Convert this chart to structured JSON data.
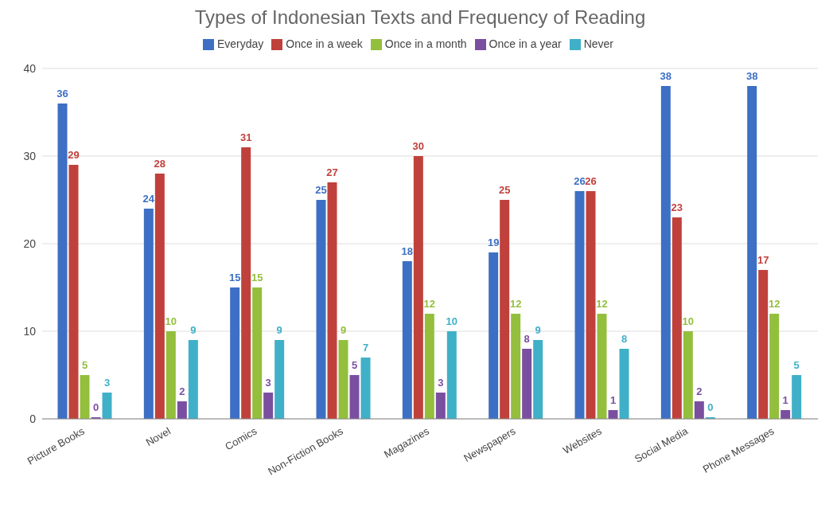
{
  "chart_data": {
    "type": "bar",
    "title": "Types of Indonesian Texts and Frequency of Reading",
    "categories": [
      "Picture Books",
      "Novel",
      "Comics",
      "Non-Fiction Books",
      "Magazines",
      "Newspapers",
      "Websites",
      "Social Media",
      "Phone Messages"
    ],
    "series": [
      {
        "name": "Everyday",
        "color": "#3d6fc4",
        "values": [
          36,
          24,
          15,
          25,
          18,
          19,
          26,
          38,
          38
        ]
      },
      {
        "name": "Once in a week",
        "color": "#c0413b",
        "values": [
          29,
          28,
          31,
          27,
          30,
          25,
          26,
          23,
          17
        ]
      },
      {
        "name": "Once in a month",
        "color": "#93bf3d",
        "values": [
          5,
          10,
          15,
          9,
          12,
          12,
          12,
          10,
          12
        ]
      },
      {
        "name": "Once in a year",
        "color": "#7a4fa0",
        "values": [
          0,
          2,
          3,
          5,
          3,
          8,
          1,
          2,
          1
        ]
      },
      {
        "name": "Never",
        "color": "#3fb0c8",
        "values": [
          3,
          9,
          9,
          7,
          10,
          9,
          8,
          0,
          5
        ]
      }
    ],
    "ylim": [
      0,
      40
    ],
    "yticks": [
      0,
      10,
      20,
      30,
      40
    ],
    "grid": "y",
    "legend": "top",
    "data_labels": true
  }
}
